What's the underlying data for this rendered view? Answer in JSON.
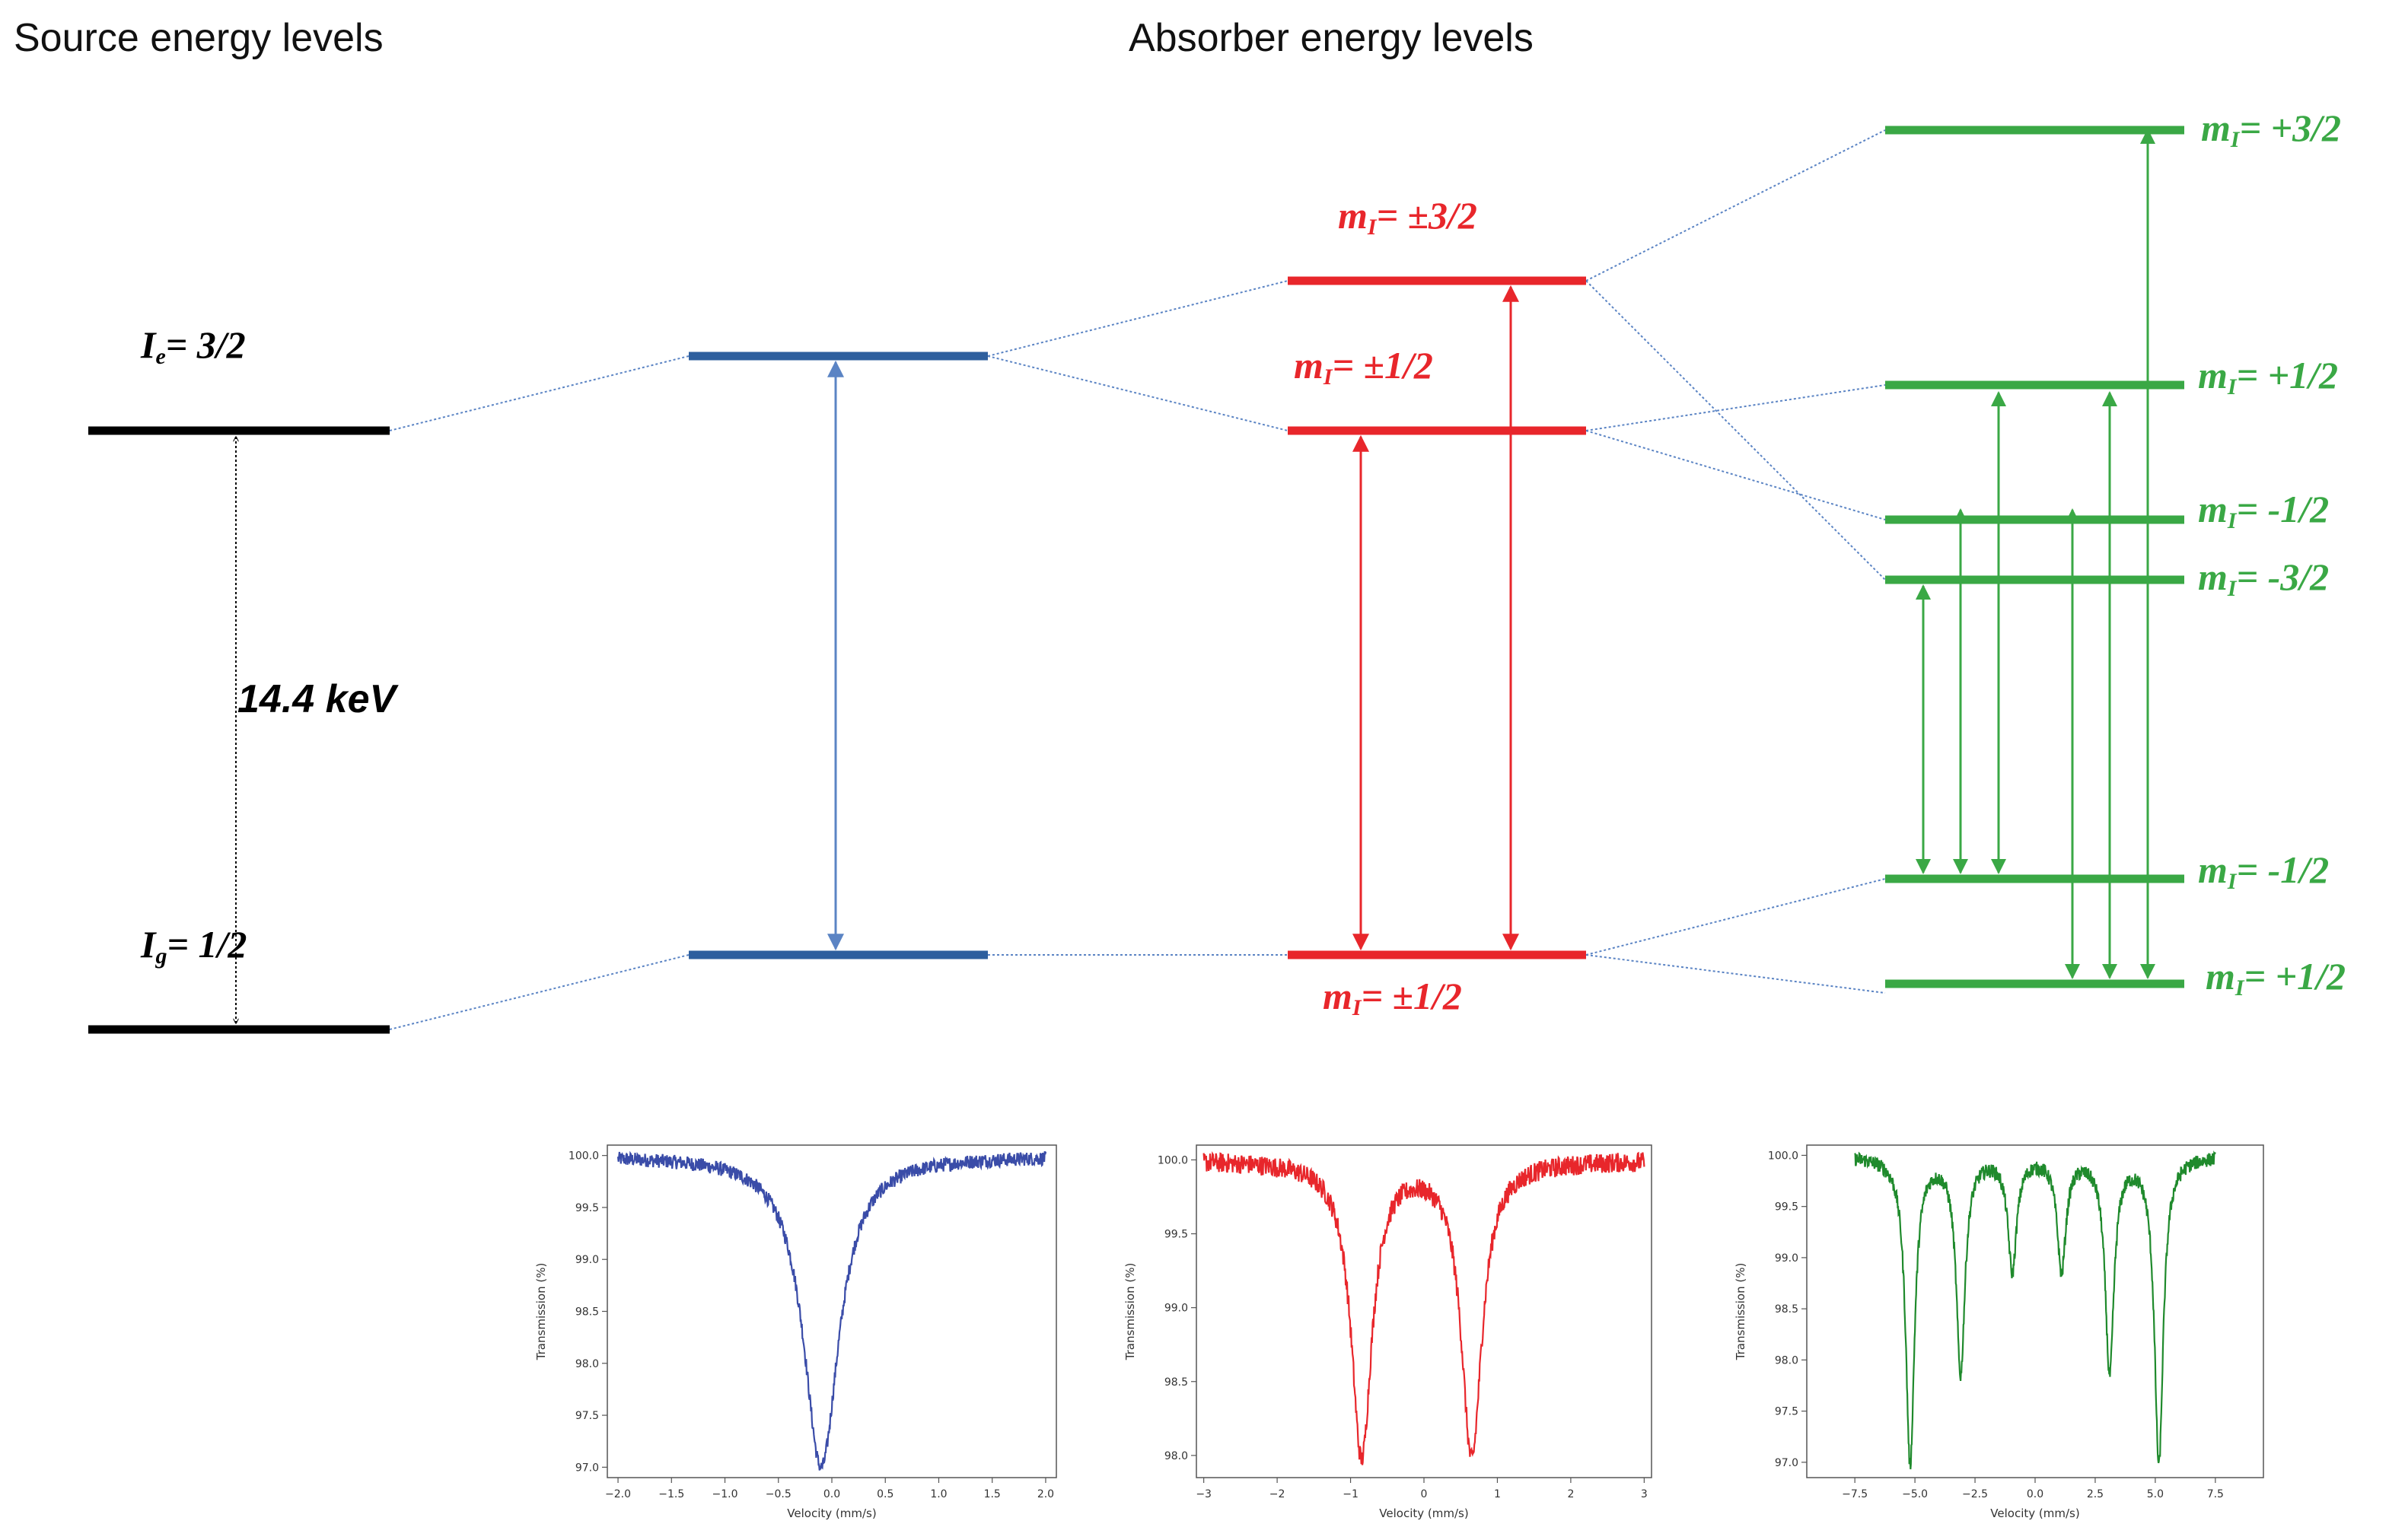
{
  "headers": {
    "source": "Source energy levels",
    "absorber": "Absorber energy levels"
  },
  "colors": {
    "source": "#000000",
    "single": "#2e5f9e",
    "quadrupole": "#e8262b",
    "magnetic": "#3aa845",
    "connector": "#5b84c4"
  },
  "source_levels": {
    "excited": {
      "symbol": "I",
      "sub": "e",
      "value": "= 3/2"
    },
    "ground": {
      "symbol": "I",
      "sub": "g",
      "value": "= 1/2"
    },
    "transition_energy": "14.4 keV"
  },
  "quadrupole_levels": {
    "top": {
      "symbol": "m",
      "sub": "I",
      "value": "= ±3/2"
    },
    "middle": {
      "symbol": "m",
      "sub": "I",
      "value": "= ±1/2"
    },
    "bottom": {
      "symbol": "m",
      "sub": "I",
      "value": "= ±1/2"
    }
  },
  "magnetic_levels": {
    "e1": {
      "symbol": "m",
      "sub": "I",
      "value": "= +3/2"
    },
    "e2": {
      "symbol": "m",
      "sub": "I",
      "value": "= +1/2"
    },
    "e3": {
      "symbol": "m",
      "sub": "I",
      "value": "= -1/2"
    },
    "e4": {
      "symbol": "m",
      "sub": "I",
      "value": "= -3/2"
    },
    "g1": {
      "symbol": "m",
      "sub": "I",
      "value": "= -1/2"
    },
    "g2": {
      "symbol": "m",
      "sub": "I",
      "value": "= +1/2"
    }
  },
  "chart_data": [
    {
      "type": "line",
      "color": "#3a4ca8",
      "xlabel": "Velocity (mm/s)",
      "ylabel": "Transmission (%)",
      "xlim": [
        -2.1,
        2.1
      ],
      "ylim": [
        96.9,
        100.1
      ],
      "xticks": [
        -2.0,
        -1.5,
        -1.0,
        -0.5,
        0.0,
        0.5,
        1.0,
        1.5,
        2.0
      ],
      "xtick_labels": [
        "−2.0",
        "−1.5",
        "−1.0",
        "−0.5",
        "0.0",
        "0.5",
        "1.0",
        "1.5",
        "2.0"
      ],
      "yticks": [
        97.0,
        97.5,
        98.0,
        98.5,
        99.0,
        99.5,
        100.0
      ],
      "ytick_labels": [
        "97.0",
        "97.5",
        "98.0",
        "98.5",
        "99.0",
        "99.5",
        "100.0"
      ],
      "baseline": 100.0,
      "noise": 0.04,
      "peaks": [
        {
          "center": -0.1,
          "depth": 3.0,
          "width": 0.2
        }
      ]
    },
    {
      "type": "line",
      "color": "#e8262b",
      "xlabel": "Velocity (mm/s)",
      "ylabel": "Transmission (%)",
      "xlim": [
        -3.1,
        3.1
      ],
      "ylim": [
        97.85,
        100.1
      ],
      "xticks": [
        -3,
        -2,
        -1,
        0,
        1,
        2,
        3
      ],
      "xtick_labels": [
        "−3",
        "−2",
        "−1",
        "0",
        "1",
        "2",
        "3"
      ],
      "yticks": [
        98.0,
        98.5,
        99.0,
        99.5,
        100.0
      ],
      "ytick_labels": [
        "98.0",
        "98.5",
        "99.0",
        "99.5",
        "100.0"
      ],
      "baseline": 100.0,
      "noise": 0.04,
      "peaks": [
        {
          "center": -0.85,
          "depth": 2.0,
          "width": 0.17
        },
        {
          "center": 0.65,
          "depth": 2.0,
          "width": 0.17
        }
      ]
    },
    {
      "type": "line",
      "color": "#1f8a2c",
      "xlabel": "Velocity (mm/s)",
      "ylabel": "Transmission (%)",
      "xlim": [
        -9.5,
        9.5
      ],
      "ylim": [
        96.85,
        100.1
      ],
      "xticks": [
        -7.5,
        -5.0,
        -2.5,
        0.0,
        2.5,
        5.0,
        7.5
      ],
      "xtick_labels": [
        "−7.5",
        "−5.0",
        "−2.5",
        "0.0",
        "2.5",
        "5.0",
        "7.5"
      ],
      "yticks": [
        97.0,
        97.5,
        98.0,
        98.5,
        99.0,
        99.5,
        100.0
      ],
      "ytick_labels": [
        "97.0",
        "97.5",
        "98.0",
        "98.5",
        "99.0",
        "99.5",
        "100.0"
      ],
      "baseline": 100.0,
      "noise": 0.04,
      "peaks": [
        {
          "center": -5.2,
          "depth": 3.0,
          "width": 0.22
        },
        {
          "center": -3.1,
          "depth": 2.1,
          "width": 0.22
        },
        {
          "center": -0.95,
          "depth": 1.1,
          "width": 0.22
        },
        {
          "center": 1.1,
          "depth": 1.1,
          "width": 0.22
        },
        {
          "center": 3.1,
          "depth": 2.1,
          "width": 0.22
        },
        {
          "center": 5.15,
          "depth": 3.0,
          "width": 0.22
        }
      ]
    }
  ]
}
